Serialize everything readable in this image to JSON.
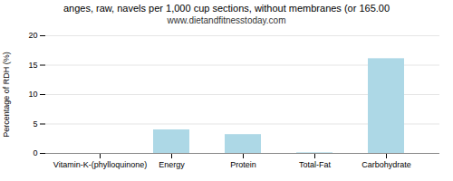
{
  "chart_data": {
    "type": "bar",
    "title": "anges, raw, navels per 1,000 cup sections, without membranes (or 165.00",
    "subtitle": "www.dietandfitnesstoday.com",
    "categories": [
      "Vitamin-K-(phylloquinone)",
      "Energy",
      "Protein",
      "Total-Fat",
      "Carbohydrate"
    ],
    "values": [
      0,
      4.0,
      3.2,
      0.1,
      16.1
    ],
    "color": "#add8e6",
    "ylabel": "Percentage of RDH (%)",
    "ylim": [
      0,
      20
    ],
    "yticks": [
      0,
      5,
      10,
      15,
      20
    ],
    "grid": true
  }
}
